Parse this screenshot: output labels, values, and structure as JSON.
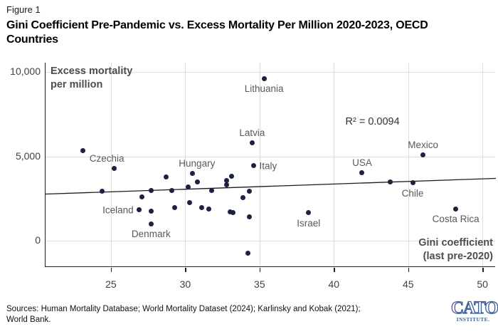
{
  "figure_label": "Figure 1",
  "title_lines": [
    "Gini Coefficient Pre-Pandemic vs. Excess Mortality Per Million 2020-2023, OECD",
    "Countries"
  ],
  "chart_data": {
    "type": "scatter",
    "x_axis_label_lines": [
      "Gini coefficient",
      "(last pre-2020)"
    ],
    "y_axis_label_lines": [
      "Excess mortality",
      "per million"
    ],
    "xlim": [
      20.6,
      50.9
    ],
    "ylim": [
      -1550,
      10550
    ],
    "x_ticks": [
      25,
      30,
      35,
      40,
      45,
      50
    ],
    "y_ticks": [
      {
        "value": 0,
        "label": "0"
      },
      {
        "value": 5000,
        "label": "5,000"
      },
      {
        "value": 10000,
        "label": "10,000"
      }
    ],
    "grid": true,
    "legend": "none",
    "point_color": "#1b2240",
    "label_color": "#595959",
    "r_squared": 0.0094,
    "annotation": {
      "text": "R² = 0.0094",
      "x": 42.6,
      "y": 7050
    },
    "trendline": {
      "x1": 20.6,
      "y1": 2770,
      "x2": 50.9,
      "y2": 3700,
      "color": "#1a1a1a"
    },
    "points": [
      {
        "x": 35.3,
        "y": 9620,
        "label": "Lithuania",
        "label_pos": "below"
      },
      {
        "x": 34.5,
        "y": 5800,
        "label": "Latvia",
        "label_pos": "above"
      },
      {
        "x": 34.6,
        "y": 4450,
        "label": "Italy",
        "label_pos": "right"
      },
      {
        "x": 25.2,
        "y": 4280,
        "label": "Czechia",
        "label_pos": "above",
        "label_dx": -10
      },
      {
        "x": 30.5,
        "y": 3990,
        "label": "Hungary",
        "label_pos": "above",
        "label_dx": 6
      },
      {
        "x": 46.0,
        "y": 5080,
        "label": "Mexico",
        "label_pos": "above"
      },
      {
        "x": 41.9,
        "y": 4030,
        "label": "USA",
        "label_pos": "above"
      },
      {
        "x": 45.3,
        "y": 3440,
        "label": "Chile",
        "label_pos": "below"
      },
      {
        "x": 38.3,
        "y": 1660,
        "label": "Israel",
        "label_pos": "below"
      },
      {
        "x": 48.2,
        "y": 1890,
        "label": "Costa Rica",
        "label_pos": "below"
      },
      {
        "x": 26.9,
        "y": 1840,
        "label": "Iceland",
        "label_pos": "left"
      },
      {
        "x": 27.7,
        "y": 1010,
        "label": "Denmark",
        "label_pos": "below"
      },
      {
        "x": 23.1,
        "y": 5350
      },
      {
        "x": 24.4,
        "y": 2940
      },
      {
        "x": 27.1,
        "y": 2600
      },
      {
        "x": 27.7,
        "y": 2980
      },
      {
        "x": 28.7,
        "y": 3790
      },
      {
        "x": 29.1,
        "y": 2990
      },
      {
        "x": 30.2,
        "y": 3190
      },
      {
        "x": 30.8,
        "y": 3490
      },
      {
        "x": 31.8,
        "y": 2980
      },
      {
        "x": 32.8,
        "y": 3570
      },
      {
        "x": 32.8,
        "y": 3320
      },
      {
        "x": 33.1,
        "y": 3820
      },
      {
        "x": 30.3,
        "y": 2270
      },
      {
        "x": 27.7,
        "y": 1760
      },
      {
        "x": 29.3,
        "y": 1970
      },
      {
        "x": 31.1,
        "y": 1970
      },
      {
        "x": 31.6,
        "y": 1890
      },
      {
        "x": 33.0,
        "y": 1720
      },
      {
        "x": 33.2,
        "y": 1680
      },
      {
        "x": 33.9,
        "y": 2560
      },
      {
        "x": 34.3,
        "y": 2940
      },
      {
        "x": 34.3,
        "y": 1430
      },
      {
        "x": 43.8,
        "y": 3490
      },
      {
        "x": 34.2,
        "y": -710
      }
    ]
  },
  "footer": {
    "sources_lines": [
      "Sources: Human Mortality Database; World Mortality Dataset (2024); Karlinsky and Kobak (2021);",
      "World Bank."
    ],
    "logo_text": "CATO",
    "logo_subtext": "INSTITUTE.",
    "logo_color": "#3f5e96"
  }
}
